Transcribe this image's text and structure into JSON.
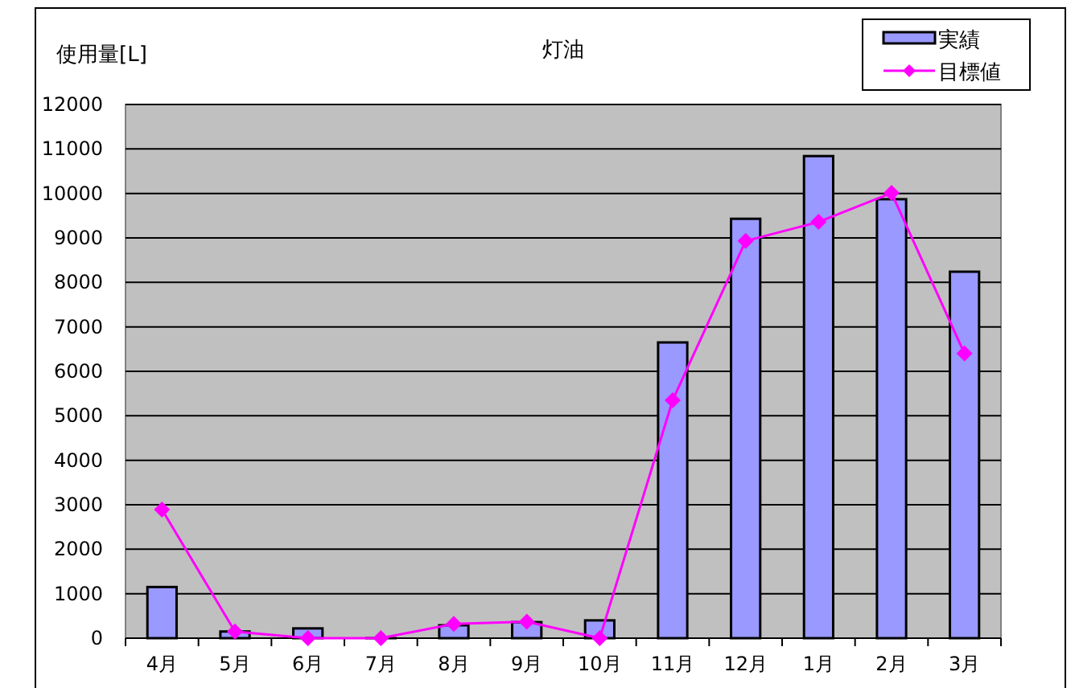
{
  "chart_data": {
    "type": "bar",
    "title": "灯油",
    "ylabel": "使用量[L]",
    "categories": [
      "4月",
      "5月",
      "6月",
      "7月",
      "8月",
      "9月",
      "10月",
      "11月",
      "12月",
      "1月",
      "2月",
      "3月"
    ],
    "series": [
      {
        "name": "実績",
        "color": "#9999ff",
        "values": [
          1150,
          150,
          220,
          0,
          290,
          360,
          400,
          6650,
          9430,
          10840,
          9870,
          8240
        ]
      },
      {
        "name": "目標値",
        "type": "line",
        "color": "#ff00ff",
        "marker": "diamond",
        "values": [
          2890,
          150,
          0,
          0,
          320,
          370,
          0,
          5350,
          8930,
          9360,
          10010,
          6400
        ]
      }
    ],
    "ylim": [
      0,
      12000
    ],
    "yticks": [
      0,
      1000,
      2000,
      3000,
      4000,
      5000,
      6000,
      7000,
      8000,
      9000,
      10000,
      11000,
      12000
    ],
    "grid": "y",
    "legend": "top right"
  }
}
